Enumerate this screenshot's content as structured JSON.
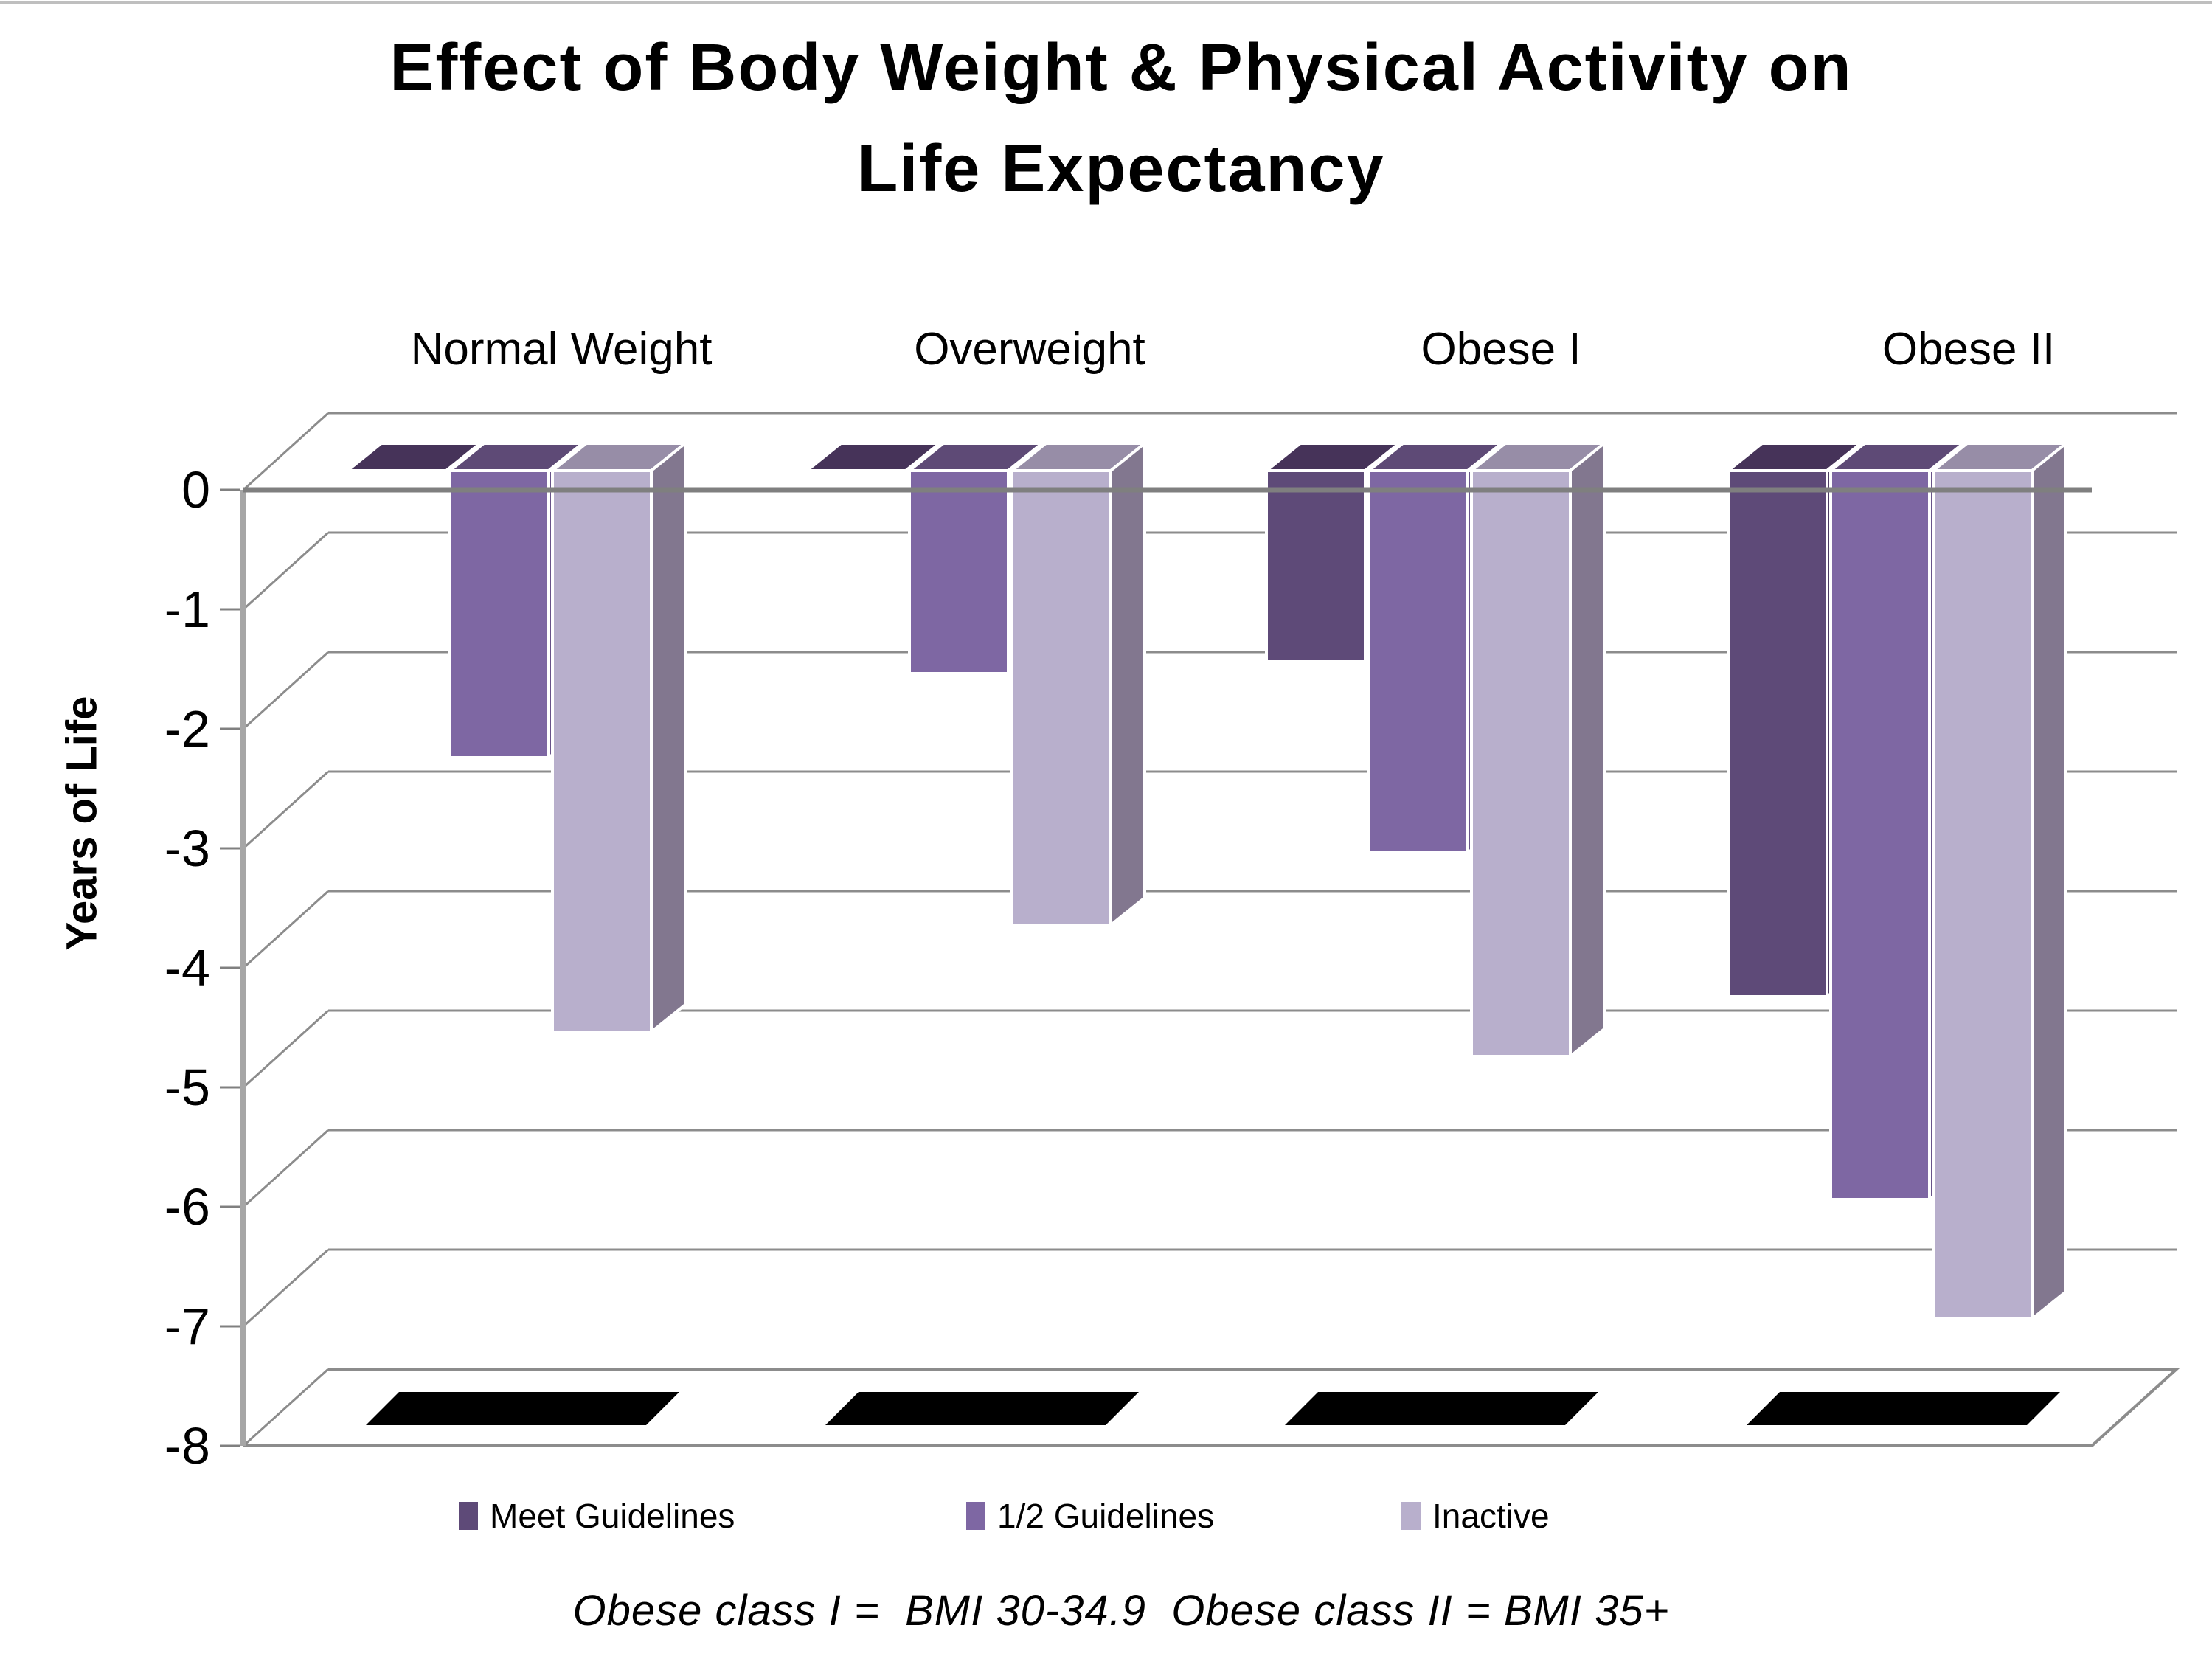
{
  "title": {
    "line1": "Effect of Body Weight & Physical Activity on",
    "line2": "Life Expectancy"
  },
  "y_axis": {
    "label": "Years of Life",
    "ticks": [
      "0",
      "-1",
      "-2",
      "-3",
      "-4",
      "-5",
      "-6",
      "-7",
      "-8"
    ],
    "min": -8,
    "max": 0
  },
  "chart_data": {
    "type": "bar",
    "style": "3d-clustered-column",
    "title": "Effect of Body Weight & Physical Activity on Life Expectancy",
    "ylabel": "Years of Life",
    "ylim": [
      -8,
      0
    ],
    "grid": true,
    "legend_position": "bottom",
    "categories": [
      "Normal Weight",
      "Overweight",
      "Obese I",
      "Obese II"
    ],
    "series": [
      {
        "name": "Meet Guidelines",
        "values": [
          0,
          0,
          -1.6,
          -4.4
        ],
        "color": "#5e4a78",
        "color_top": "#463359",
        "color_side": "#4e3d64"
      },
      {
        "name": "1/2 Guidelines",
        "values": [
          -2.4,
          -1.7,
          -3.2,
          -6.1
        ],
        "color": "#7e67a3",
        "color_top": "#5e4a76",
        "color_side": "#685389"
      },
      {
        "name": "Inactive",
        "values": [
          -4.7,
          -3.8,
          -4.9,
          -7.1
        ],
        "color": "#b8afcc",
        "color_top": "#978da7",
        "color_side": "#82778f"
      }
    ]
  },
  "legend": {
    "items": [
      {
        "label": "Meet Guidelines",
        "color": "#5e4a78"
      },
      {
        "label": "1/2 Guidelines",
        "color": "#7e67a3"
      },
      {
        "label": "Inactive",
        "color": "#b8afcc"
      }
    ]
  },
  "footnote": "Obese class I =  BMI 30-34.9  Obese class II = BMI 35+",
  "colors": {
    "gridline": "#8c8c8c",
    "axis": "#a6a6a6",
    "zero_line": "#7f7f7f",
    "floor_shadow": "#000000",
    "text": "#000000",
    "top_border": "#bfbfbf"
  }
}
